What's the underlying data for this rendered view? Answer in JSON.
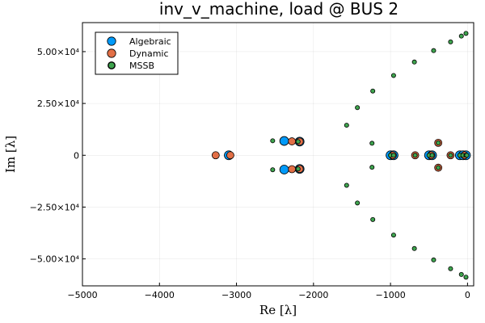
{
  "chart_data": {
    "type": "scatter",
    "title": "inv_v_machine, load @ BUS 2",
    "xlabel": "Re [λ]",
    "ylabel": "Im [λ]",
    "xlim": [
      -5000,
      80
    ],
    "ylim": [
      -63000,
      64000
    ],
    "xticks": [
      -5000,
      -4000,
      -3000,
      -2000,
      -1000,
      0
    ],
    "xtick_labels": [
      "−5000",
      "−4000",
      "−3000",
      "−2000",
      "−1000",
      "0"
    ],
    "yticks": [
      -50000,
      -25000,
      0,
      25000,
      50000
    ],
    "ytick_labels": [
      "−5.00×10⁴",
      "−2.50×10⁴",
      "0",
      "2.50×10⁴",
      "5.00×10⁴"
    ],
    "grid": true,
    "legend_position": "top-left",
    "series": [
      {
        "name": "Algebraic",
        "color": "#009af9",
        "points": [
          [
            -3100,
            0
          ],
          [
            -2380,
            6900
          ],
          [
            -2380,
            -6900
          ],
          [
            -2180,
            6600
          ],
          [
            -2180,
            -6600
          ],
          [
            -1000,
            0
          ],
          [
            -960,
            0
          ],
          [
            -500,
            0
          ],
          [
            -460,
            0
          ],
          [
            -100,
            0
          ],
          [
            -60,
            0
          ],
          [
            -20,
            0
          ]
        ]
      },
      {
        "name": "Dynamic",
        "color": "#e26f46",
        "points": [
          [
            -3270,
            0
          ],
          [
            -3080,
            0
          ],
          [
            -2280,
            6700
          ],
          [
            -2280,
            -6700
          ],
          [
            -2180,
            6600
          ],
          [
            -2180,
            -6600
          ],
          [
            -970,
            0
          ],
          [
            -680,
            0
          ],
          [
            -470,
            0
          ],
          [
            -380,
            6000
          ],
          [
            -380,
            -6000
          ],
          [
            -220,
            0
          ],
          [
            -40,
            0
          ]
        ]
      },
      {
        "name": "MSSB",
        "color": "#3ea44e",
        "points": [
          [
            -2530,
            7000
          ],
          [
            -2530,
            -7000
          ],
          [
            -2200,
            6600
          ],
          [
            -2200,
            -6600
          ],
          [
            -1570,
            14500
          ],
          [
            -1570,
            -14500
          ],
          [
            -1430,
            23000
          ],
          [
            -1430,
            -23000
          ],
          [
            -1240,
            5800
          ],
          [
            -1240,
            -5800
          ],
          [
            -1230,
            31000
          ],
          [
            -1230,
            -31000
          ],
          [
            -960,
            38500
          ],
          [
            -960,
            -38500
          ],
          [
            -690,
            45000
          ],
          [
            -690,
            -45000
          ],
          [
            -440,
            50500
          ],
          [
            -440,
            -50500
          ],
          [
            -220,
            54700
          ],
          [
            -220,
            -54700
          ],
          [
            -80,
            57500
          ],
          [
            -80,
            -57500
          ],
          [
            -20,
            58800
          ],
          [
            -20,
            -58800
          ],
          [
            -1000,
            0
          ],
          [
            -960,
            0
          ],
          [
            -680,
            0
          ],
          [
            -500,
            0
          ],
          [
            -460,
            0
          ],
          [
            -380,
            6000
          ],
          [
            -380,
            -6000
          ],
          [
            -220,
            0
          ],
          [
            -100,
            0
          ],
          [
            -60,
            0
          ],
          [
            -20,
            0
          ],
          [
            -10,
            0
          ]
        ]
      }
    ]
  }
}
